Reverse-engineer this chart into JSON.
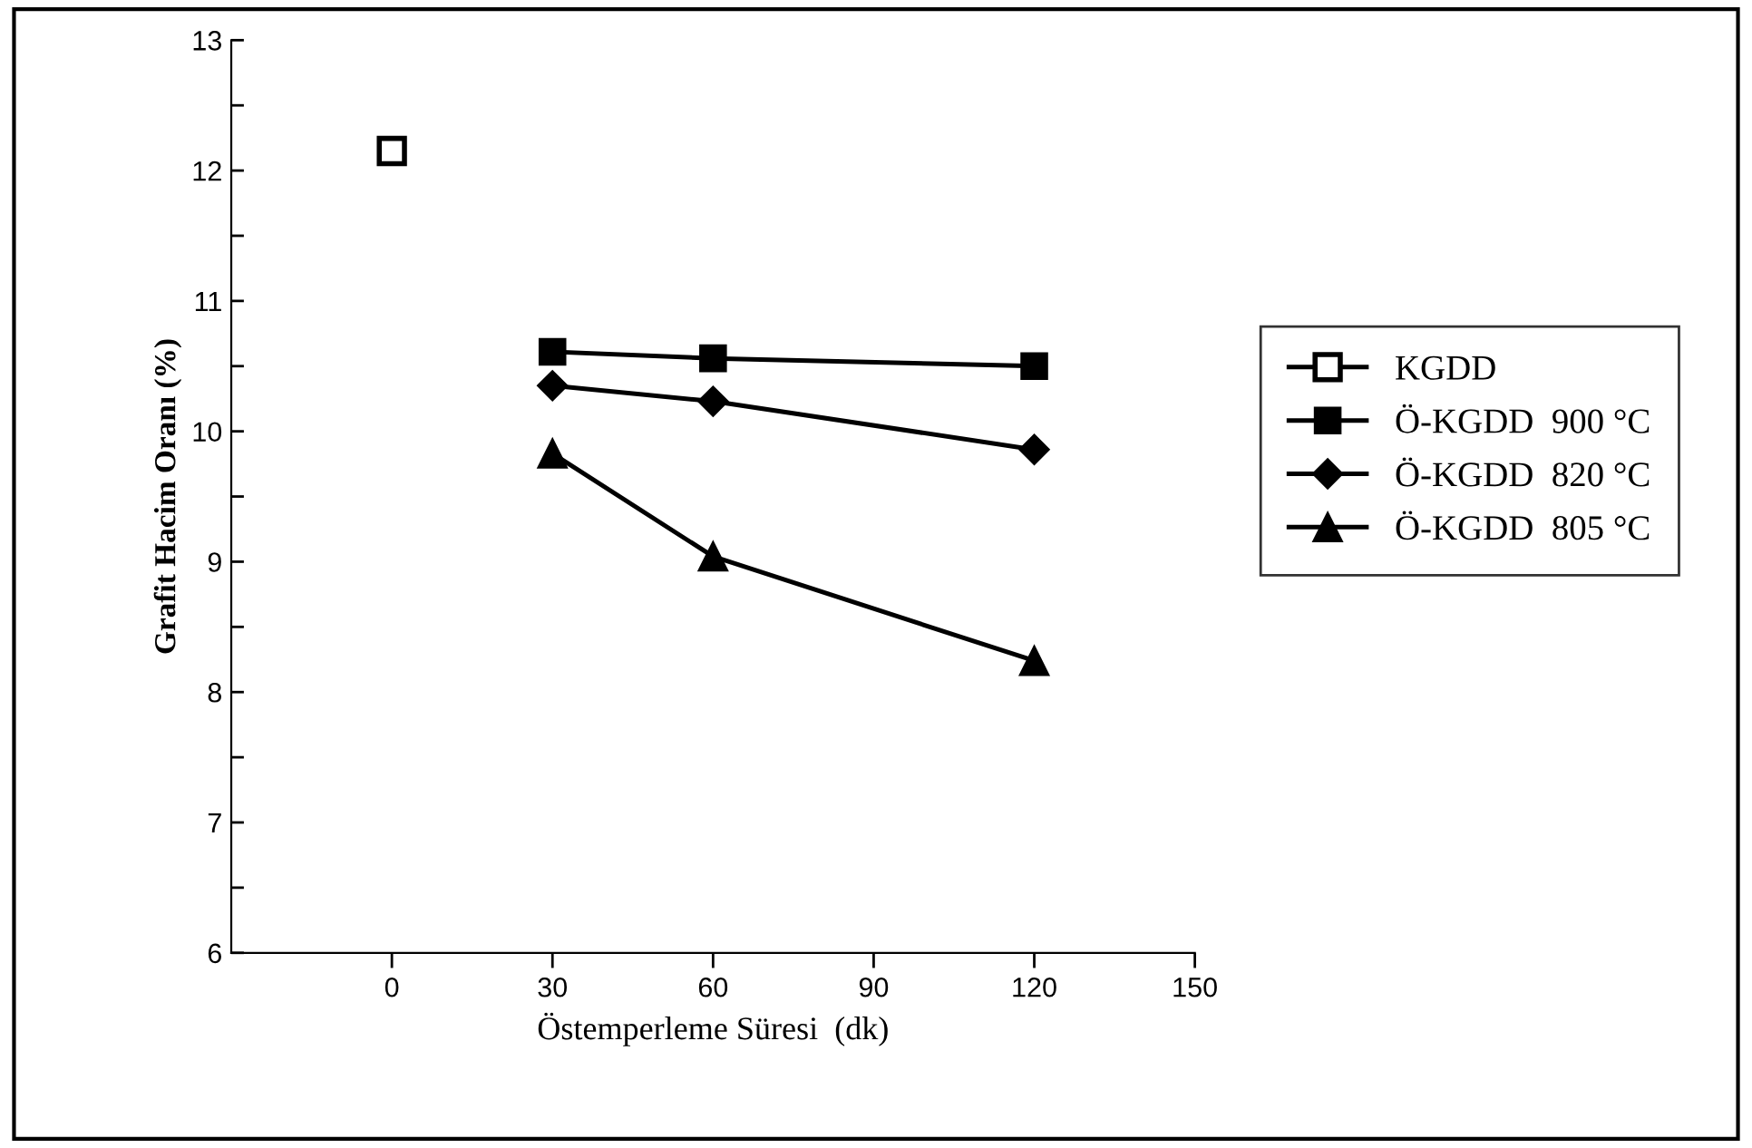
{
  "chart_data": {
    "type": "line",
    "xlabel": "Östemperleme Süresi  (dk)",
    "ylabel": "Grafit Hacim Oranı (%)",
    "xlim": [
      -30,
      150
    ],
    "xticks": [
      0,
      30,
      60,
      90,
      120,
      150
    ],
    "ylim": [
      6,
      13
    ],
    "yticks": [
      6,
      {
        "value": 6.5,
        "label": null
      },
      7,
      {
        "value": 7.5,
        "label": null
      },
      8,
      {
        "value": 8.5,
        "label": null
      },
      9,
      {
        "value": 9.5,
        "label": null
      },
      10,
      {
        "value": 10.5,
        "label": null
      },
      11,
      {
        "value": 11.5,
        "label": null
      },
      12,
      {
        "value": 12.5,
        "label": null
      },
      13
    ],
    "grid": false,
    "legend": "right",
    "series": [
      {
        "name": "KGDD",
        "type": "scatter",
        "color": "#000000",
        "marker": "square",
        "x": [
          0
        ],
        "values": [
          12.15
        ]
      },
      {
        "name": "Ö-KGDD  900 °C",
        "color": "#000000",
        "marker": "square",
        "x": [
          30,
          60,
          120
        ],
        "values": [
          10.61,
          10.56,
          10.5
        ]
      },
      {
        "name": "Ö-KGDD  820 °C",
        "color": "#000000",
        "marker": "diamond",
        "x": [
          30,
          60,
          120
        ],
        "values": [
          10.35,
          10.23,
          9.86
        ]
      },
      {
        "name": "Ö-KGDD  805 °C",
        "color": "#000000",
        "marker": "triangle",
        "x": [
          30,
          60,
          120
        ],
        "values": [
          9.83,
          9.04,
          8.24
        ]
      }
    ]
  }
}
